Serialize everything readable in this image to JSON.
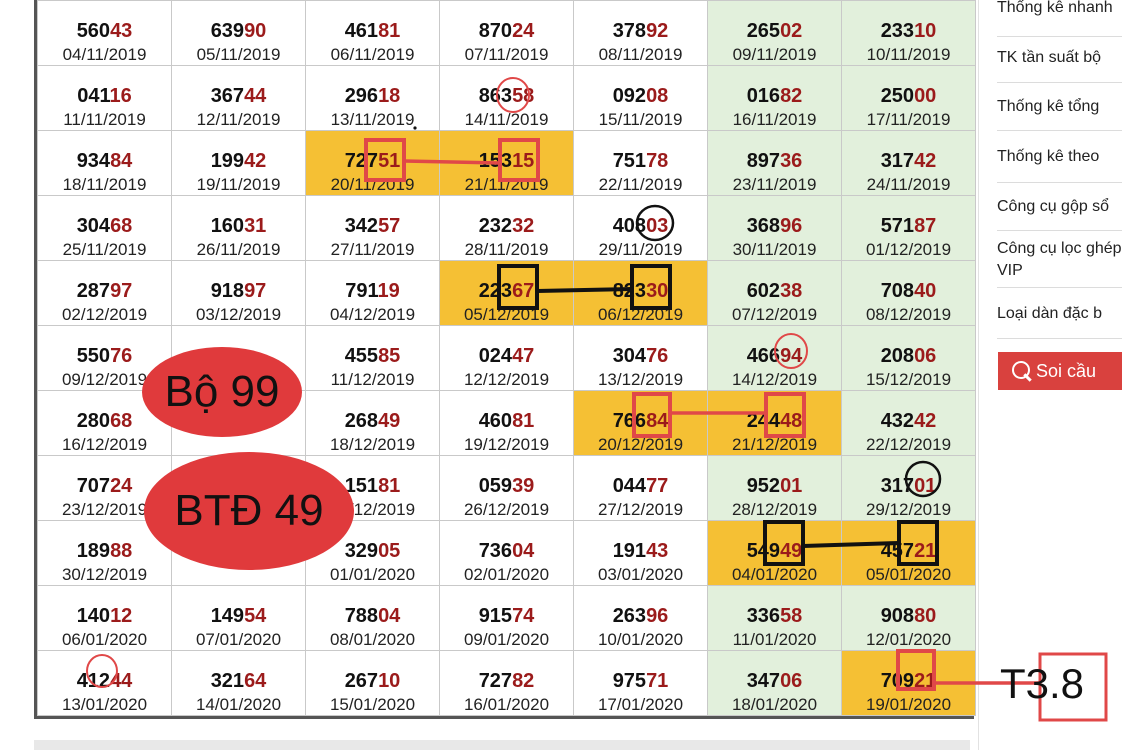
{
  "table": {
    "rows": [
      [
        {
          "lead": "560",
          "tail": "43",
          "date": "04/11/2019"
        },
        {
          "lead": "639",
          "tail": "90",
          "date": "05/11/2019"
        },
        {
          "lead": "461",
          "tail": "81",
          "date": "06/11/2019"
        },
        {
          "lead": "870",
          "tail": "24",
          "date": "07/11/2019"
        },
        {
          "lead": "378",
          "tail": "92",
          "date": "08/11/2019"
        },
        {
          "lead": "265",
          "tail": "02",
          "date": "09/11/2019"
        },
        {
          "lead": "233",
          "tail": "10",
          "date": "10/11/2019"
        }
      ],
      [
        {
          "lead": "041",
          "tail": "16",
          "date": "11/11/2019"
        },
        {
          "lead": "367",
          "tail": "44",
          "date": "12/11/2019"
        },
        {
          "lead": "296",
          "tail": "18",
          "date": "13/11/2019"
        },
        {
          "lead": "863",
          "tail": "58",
          "date": "14/11/2019"
        },
        {
          "lead": "092",
          "tail": "08",
          "date": "15/11/2019"
        },
        {
          "lead": "016",
          "tail": "82",
          "date": "16/11/2019"
        },
        {
          "lead": "250",
          "tail": "00",
          "date": "17/11/2019"
        }
      ],
      [
        {
          "lead": "934",
          "tail": "84",
          "date": "18/11/2019"
        },
        {
          "lead": "199",
          "tail": "42",
          "date": "19/11/2019"
        },
        {
          "lead": "727",
          "tail": "51",
          "date": "20/11/2019",
          "hl": true
        },
        {
          "lead": "153",
          "tail": "15",
          "date": "21/11/2019",
          "hl": true
        },
        {
          "lead": "751",
          "tail": "78",
          "date": "22/11/2019"
        },
        {
          "lead": "897",
          "tail": "36",
          "date": "23/11/2019"
        },
        {
          "lead": "317",
          "tail": "42",
          "date": "24/11/2019"
        }
      ],
      [
        {
          "lead": "304",
          "tail": "68",
          "date": "25/11/2019"
        },
        {
          "lead": "160",
          "tail": "31",
          "date": "26/11/2019"
        },
        {
          "lead": "342",
          "tail": "57",
          "date": "27/11/2019"
        },
        {
          "lead": "232",
          "tail": "32",
          "date": "28/11/2019"
        },
        {
          "lead": "408",
          "tail": "03",
          "date": "29/11/2019"
        },
        {
          "lead": "368",
          "tail": "96",
          "date": "30/11/2019"
        },
        {
          "lead": "571",
          "tail": "87",
          "date": "01/12/2019"
        }
      ],
      [
        {
          "lead": "287",
          "tail": "97",
          "date": "02/12/2019"
        },
        {
          "lead": "918",
          "tail": "97",
          "date": "03/12/2019"
        },
        {
          "lead": "791",
          "tail": "19",
          "date": "04/12/2019"
        },
        {
          "lead": "223",
          "tail": "67",
          "date": "05/12/2019",
          "hl": true
        },
        {
          "lead": "823",
          "tail": "30",
          "date": "06/12/2019",
          "hl": true
        },
        {
          "lead": "602",
          "tail": "38",
          "date": "07/12/2019"
        },
        {
          "lead": "708",
          "tail": "40",
          "date": "08/12/2019"
        }
      ],
      [
        {
          "lead": "550",
          "tail": "76",
          "date": "09/12/2019"
        },
        {
          "lead": "",
          "tail": "",
          "date": ""
        },
        {
          "lead": "455",
          "tail": "85",
          "date": "11/12/2019"
        },
        {
          "lead": "024",
          "tail": "47",
          "date": "12/12/2019"
        },
        {
          "lead": "304",
          "tail": "76",
          "date": "13/12/2019"
        },
        {
          "lead": "466",
          "tail": "94",
          "date": "14/12/2019"
        },
        {
          "lead": "208",
          "tail": "06",
          "date": "15/12/2019"
        }
      ],
      [
        {
          "lead": "280",
          "tail": "68",
          "date": "16/12/2019"
        },
        {
          "lead": "",
          "tail": "",
          "date": ""
        },
        {
          "lead": "268",
          "tail": "49",
          "date": "18/12/2019"
        },
        {
          "lead": "460",
          "tail": "81",
          "date": "19/12/2019"
        },
        {
          "lead": "766",
          "tail": "84",
          "date": "20/12/2019",
          "hl": true
        },
        {
          "lead": "244",
          "tail": "48",
          "date": "21/12/2019",
          "hl": true
        },
        {
          "lead": "432",
          "tail": "42",
          "date": "22/12/2019"
        }
      ],
      [
        {
          "lead": "707",
          "tail": "24",
          "date": "23/12/2019"
        },
        {
          "lead": "",
          "tail": "",
          "date": ""
        },
        {
          "lead": "151",
          "tail": "81",
          "date": "25/12/2019"
        },
        {
          "lead": "059",
          "tail": "39",
          "date": "26/12/2019"
        },
        {
          "lead": "044",
          "tail": "77",
          "date": "27/12/2019"
        },
        {
          "lead": "952",
          "tail": "01",
          "date": "28/12/2019"
        },
        {
          "lead": "317",
          "tail": "01",
          "date": "29/12/2019"
        }
      ],
      [
        {
          "lead": "189",
          "tail": "88",
          "date": "30/12/2019"
        },
        {
          "lead": "",
          "tail": "",
          "date": "31/12/2019"
        },
        {
          "lead": "329",
          "tail": "05",
          "date": "01/01/2020"
        },
        {
          "lead": "736",
          "tail": "04",
          "date": "02/01/2020"
        },
        {
          "lead": "191",
          "tail": "43",
          "date": "03/01/2020"
        },
        {
          "lead": "549",
          "tail": "49",
          "date": "04/01/2020",
          "hl": true
        },
        {
          "lead": "457",
          "tail": "21",
          "date": "05/01/2020",
          "hl": true
        }
      ],
      [
        {
          "lead": "140",
          "tail": "12",
          "date": "06/01/2020"
        },
        {
          "lead": "149",
          "tail": "54",
          "date": "07/01/2020"
        },
        {
          "lead": "788",
          "tail": "04",
          "date": "08/01/2020"
        },
        {
          "lead": "915",
          "tail": "74",
          "date": "09/01/2020"
        },
        {
          "lead": "263",
          "tail": "96",
          "date": "10/01/2020"
        },
        {
          "lead": "336",
          "tail": "58",
          "date": "11/01/2020"
        },
        {
          "lead": "908",
          "tail": "80",
          "date": "12/01/2020"
        }
      ],
      [
        {
          "lead": "412",
          "tail": "44",
          "date": "13/01/2020"
        },
        {
          "lead": "321",
          "tail": "64",
          "date": "14/01/2020"
        },
        {
          "lead": "267",
          "tail": "10",
          "date": "15/01/2020"
        },
        {
          "lead": "727",
          "tail": "82",
          "date": "16/01/2020"
        },
        {
          "lead": "975",
          "tail": "71",
          "date": "17/01/2020"
        },
        {
          "lead": "347",
          "tail": "06",
          "date": "18/01/2020"
        },
        {
          "lead": "709",
          "tail": "21",
          "date": "19/01/2020",
          "hl": true
        }
      ]
    ]
  },
  "sidebar": {
    "items": [
      "Thống kê nhanh",
      "TK tần suất bộ",
      "Thống kê tổng",
      "Thống kê theo",
      "Công cụ gộp sổ",
      "Công cụ lọc ghép VIP",
      "Loại dàn đặc b"
    ],
    "soi_cau_label": "Soi cầu"
  },
  "annotations": {
    "bubble1": "Bộ 99",
    "bubble2": "BTĐ 49",
    "t38": "T3.8"
  },
  "colors": {
    "tail_red": "#9b1b1b",
    "highlight": "#f5c034",
    "weekend": "#e2f0dc",
    "annot_red": "#e03a3c",
    "button": "#d9413e"
  }
}
